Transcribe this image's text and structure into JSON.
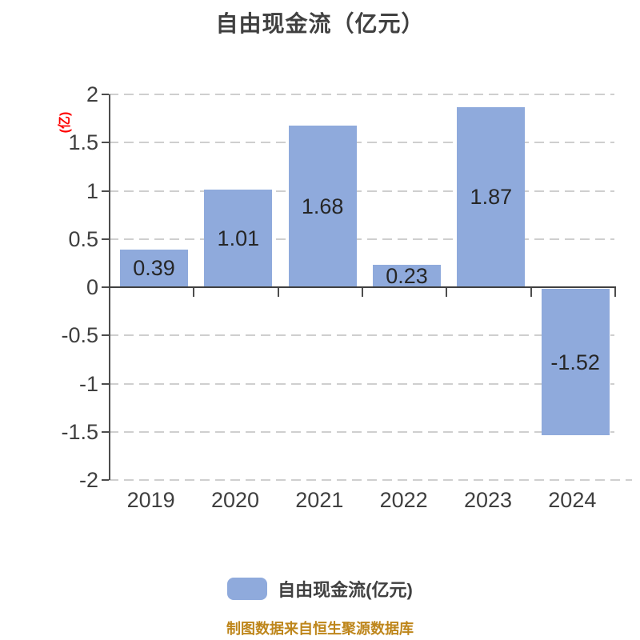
{
  "title": "自由现金流（亿元）",
  "y_axis_unit_label": "(亿)",
  "footer_note": "制图数据来自恒生聚源数据库",
  "legend": {
    "label": "自由现金流(亿元)",
    "swatch_color": "#8FAADC"
  },
  "colors": {
    "bar_fill": "#8FAADC",
    "title_text": "#404040",
    "axis_text": "#3F3F3F",
    "value_text": "#262626",
    "y_unit_label_red": "#FE0000",
    "footer_gold": "#BE861B",
    "grid_dash": "#CFCFCF",
    "axis_line": "#4D4D4D",
    "zero_line": "#404040"
  },
  "chart_data": {
    "type": "bar",
    "title": "自由现金流（亿元）",
    "ylabel": "(亿)",
    "categories": [
      "2019",
      "2020",
      "2021",
      "2022",
      "2023",
      "2024"
    ],
    "series": [
      {
        "name": "自由现金流(亿元)",
        "values": [
          0.39,
          1.01,
          1.68,
          0.23,
          1.87,
          -1.52
        ]
      }
    ],
    "value_labels": [
      "0.39",
      "1.01",
      "1.68",
      "0.23",
      "1.87",
      "-1.52"
    ],
    "ylim": [
      -2,
      2
    ],
    "ytick_step": 0.5,
    "ytick_labels": [
      "2",
      "1.5",
      "1",
      "0.5",
      "0",
      "-0.5",
      "-1",
      "-1.5",
      "-2"
    ],
    "grid": "horizontal-dashed",
    "legend_position": "bottom-center",
    "value_label_position": "inside-center"
  }
}
